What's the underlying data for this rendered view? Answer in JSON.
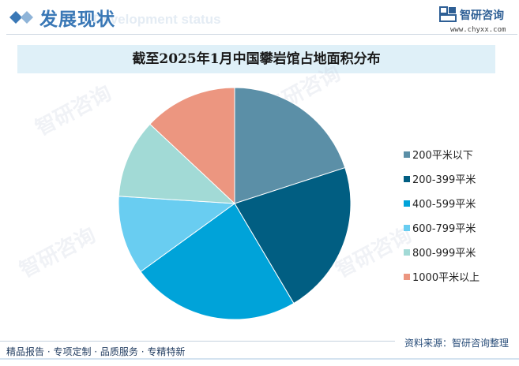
{
  "header": {
    "title": "发展现状",
    "subtitle": "Development status",
    "brand_name": "智研咨询",
    "brand_url": "www.chyxx.com",
    "accent_color": "#3a78b6"
  },
  "footer": {
    "tagline": "精品报告 · 专项定制 · 品质服务 · 专精特新",
    "source": "资料来源：智研咨询整理"
  },
  "watermark_text": "智研咨询",
  "chart_data": {
    "type": "pie",
    "title": "截至2025年1月中国攀岩馆占地面积分布",
    "legend_position": "right",
    "start_angle_deg": 0,
    "direction": "clockwise",
    "slices": [
      {
        "label": "200平米以下",
        "value": 20.0,
        "color": "#5b8fa7"
      },
      {
        "label": "200-399平米",
        "value": 21.5,
        "color": "#015e82"
      },
      {
        "label": "400-599平米",
        "value": 23.5,
        "color": "#00a3d9"
      },
      {
        "label": "600-799平米",
        "value": 11.0,
        "color": "#69cdf1"
      },
      {
        "label": "800-999平米",
        "value": 11.0,
        "color": "#a2dad6"
      },
      {
        "label": "1000平米以上",
        "value": 13.0,
        "color": "#ec9680"
      }
    ]
  }
}
